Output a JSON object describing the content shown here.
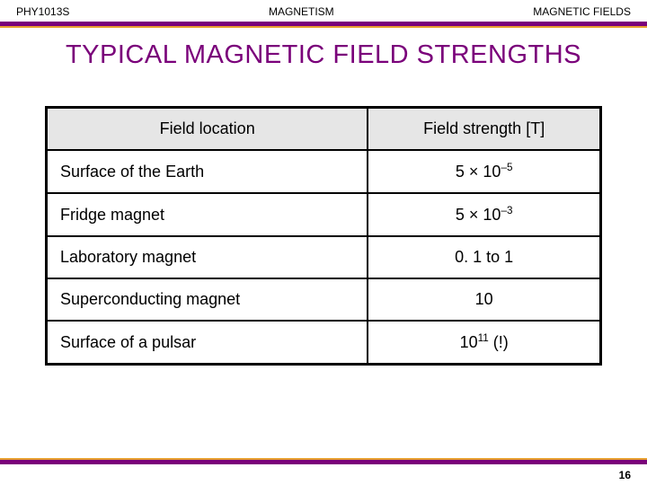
{
  "header": {
    "left": "PHY1013S",
    "center": "MAGNETISM",
    "right": "MAGNETIC FIELDS"
  },
  "title": "TYPICAL MAGNETIC FIELD STRENGTHS",
  "table": {
    "columns": [
      "Field location",
      "Field strength [T]"
    ],
    "rows": [
      {
        "location": "Surface of the Earth",
        "value_html": "5 × 10<sup>–5</sup>"
      },
      {
        "location": "Fridge magnet",
        "value_html": "5 × 10<sup>–3</sup>"
      },
      {
        "location": "Laboratory magnet",
        "value_html": "0. 1 to 1"
      },
      {
        "location": "Superconducting magnet",
        "value_html": "10"
      },
      {
        "location": "Surface of a pulsar",
        "value_html": "10<sup>11</sup> (!)"
      }
    ]
  },
  "page_number": "16",
  "colors": {
    "purple": "#7a007a",
    "orange": "#e8a030",
    "header_bg": "#e6e6e6",
    "background": "#ffffff"
  }
}
